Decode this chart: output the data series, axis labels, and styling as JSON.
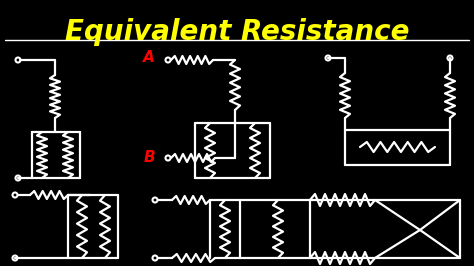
{
  "title": "Equivalent Resistance",
  "title_color": "#FFFF00",
  "background_color": "#000000",
  "circuit_color": "#FFFFFF",
  "label_a_color": "#FF0000",
  "label_b_color": "#FF0000",
  "label_a": "A",
  "label_b": "B",
  "figsize": [
    4.74,
    2.66
  ],
  "dpi": 100
}
